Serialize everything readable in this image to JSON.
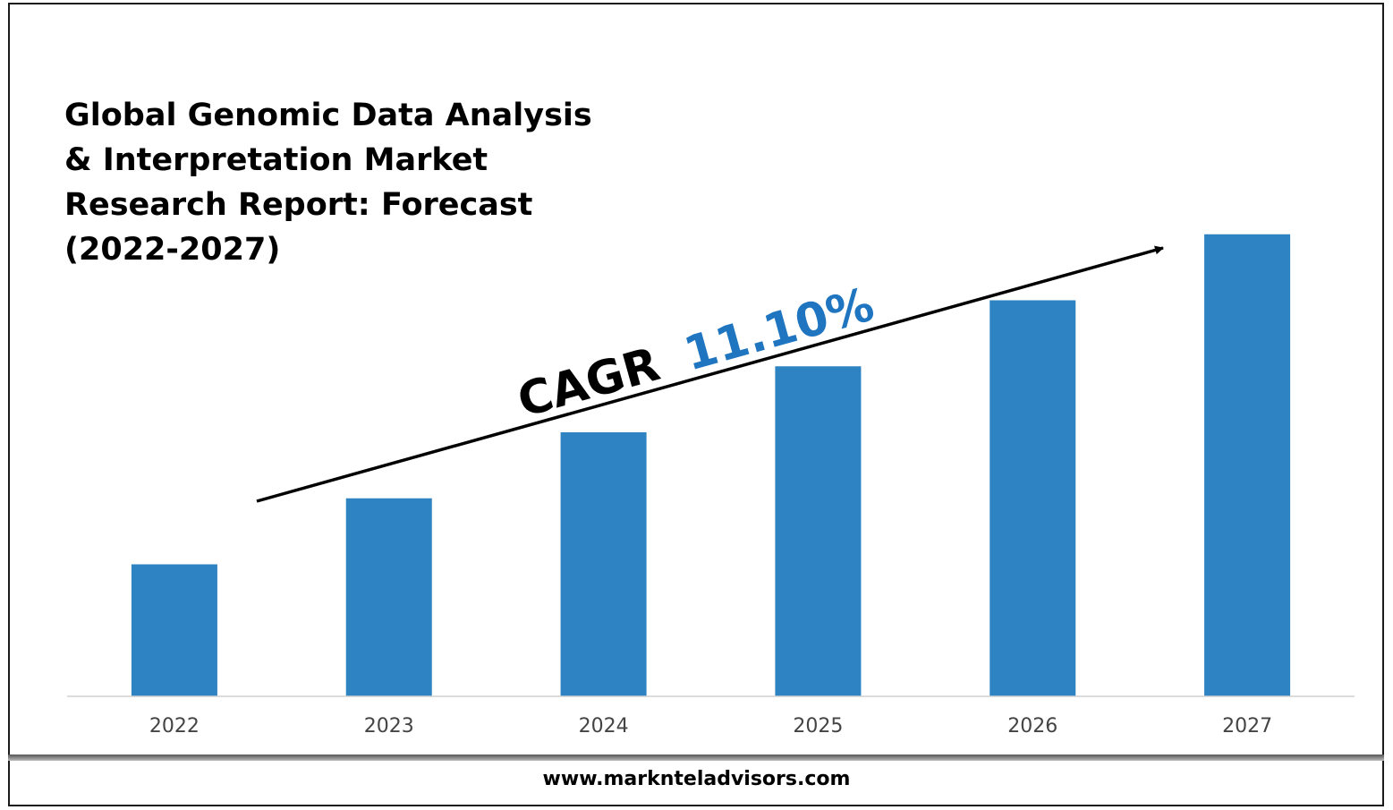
{
  "title_lines": [
    "Global Genomic Data Analysis",
    "& Interpretation Market",
    "Research Report: Forecast",
    "(2022-2027)"
  ],
  "cagr": {
    "label": "CAGR",
    "value": "11.10%"
  },
  "footer": {
    "url": "www.marknteladvisors.com"
  },
  "colors": {
    "bar": "#2e83c3",
    "cagr_value": "#1f75c0",
    "axis_text": "#444444"
  },
  "chart_data": {
    "type": "bar",
    "title": "Global Genomic Data Analysis & Interpretation Market Research Report: Forecast (2022-2027)",
    "categories": [
      "2022",
      "2023",
      "2024",
      "2025",
      "2026",
      "2027"
    ],
    "values": [
      1.0,
      1.5,
      2.0,
      2.5,
      3.0,
      3.5
    ],
    "ylim": [
      0,
      4.0
    ],
    "ylabel": "",
    "xlabel": "",
    "grid": false,
    "legend": "none",
    "annotation": "CAGR 11.10%"
  }
}
